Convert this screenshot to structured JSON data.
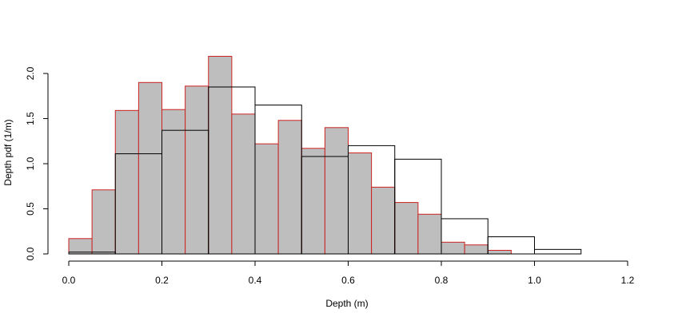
{
  "chart_data": {
    "type": "bar",
    "xlabel": "Depth (m)",
    "ylabel": "Depth pdf (1/m)",
    "xlim": [
      0,
      1.2
    ],
    "ylim": [
      0,
      2.2
    ],
    "x_ticks": [
      0.0,
      0.2,
      0.4,
      0.6,
      0.8,
      1.0,
      1.2
    ],
    "x_tick_labels": [
      "0.0",
      "0.2",
      "0.4",
      "0.6",
      "0.8",
      "1.0",
      "1.2"
    ],
    "y_ticks": [
      0.0,
      0.5,
      1.0,
      1.5,
      2.0
    ],
    "y_tick_labels": [
      "0.0",
      "0.5",
      "1.0",
      "1.5",
      "2.0"
    ],
    "grid": false,
    "series": [
      {
        "style": "filled",
        "fill_color": "#bebebe",
        "edge_color": "#cc2222",
        "bin_width": 0.05,
        "bins_start": [
          0.0,
          0.05,
          0.1,
          0.15,
          0.2,
          0.25,
          0.3,
          0.35,
          0.4,
          0.45,
          0.5,
          0.55,
          0.6,
          0.65,
          0.7,
          0.75,
          0.8,
          0.85,
          0.9
        ],
        "values": [
          0.17,
          0.71,
          1.59,
          1.9,
          1.6,
          1.86,
          2.19,
          1.55,
          1.22,
          1.48,
          1.17,
          1.4,
          1.12,
          0.74,
          0.57,
          0.44,
          0.13,
          0.1,
          0.04
        ]
      },
      {
        "style": "outline",
        "edge_color": "#000000",
        "bin_width": 0.1,
        "bins_start": [
          0.0,
          0.1,
          0.2,
          0.3,
          0.4,
          0.5,
          0.6,
          0.7,
          0.8,
          0.9,
          1.0
        ],
        "values": [
          0.02,
          1.11,
          1.37,
          1.85,
          1.65,
          1.08,
          1.2,
          1.05,
          0.39,
          0.19,
          0.05
        ]
      }
    ]
  }
}
